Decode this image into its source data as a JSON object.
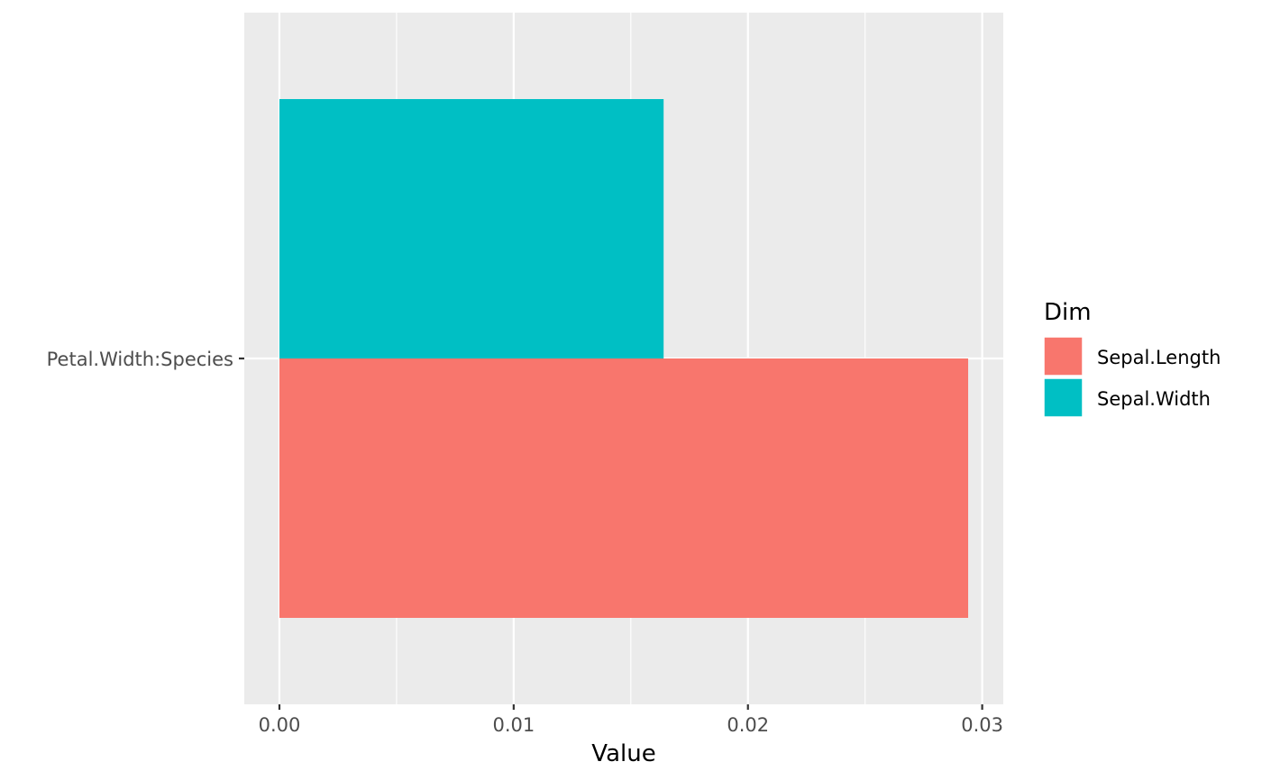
{
  "chart_data": {
    "type": "bar",
    "orientation": "horizontal",
    "position": "dodge",
    "categories": [
      "Petal.Width:Species"
    ],
    "series": [
      {
        "name": "Sepal.Length",
        "values": [
          0.0294
        ],
        "color": "#F8766D"
      },
      {
        "name": "Sepal.Width",
        "values": [
          0.0164
        ],
        "color": "#00BFC4"
      }
    ],
    "xlabel": "Value",
    "ylabel": "",
    "xlim": [
      -0.0015,
      0.0309
    ],
    "xticks": [
      0.0,
      0.01,
      0.02,
      0.03
    ],
    "xtick_labels": [
      "0.00",
      "0.01",
      "0.02",
      "0.03"
    ],
    "xminor": [
      0.005,
      0.015,
      0.025
    ],
    "legend": {
      "title": "Dim",
      "position": "right"
    },
    "grid": true,
    "panel_background": "#EBEBEB",
    "grid_color": "#FFFFFF"
  }
}
